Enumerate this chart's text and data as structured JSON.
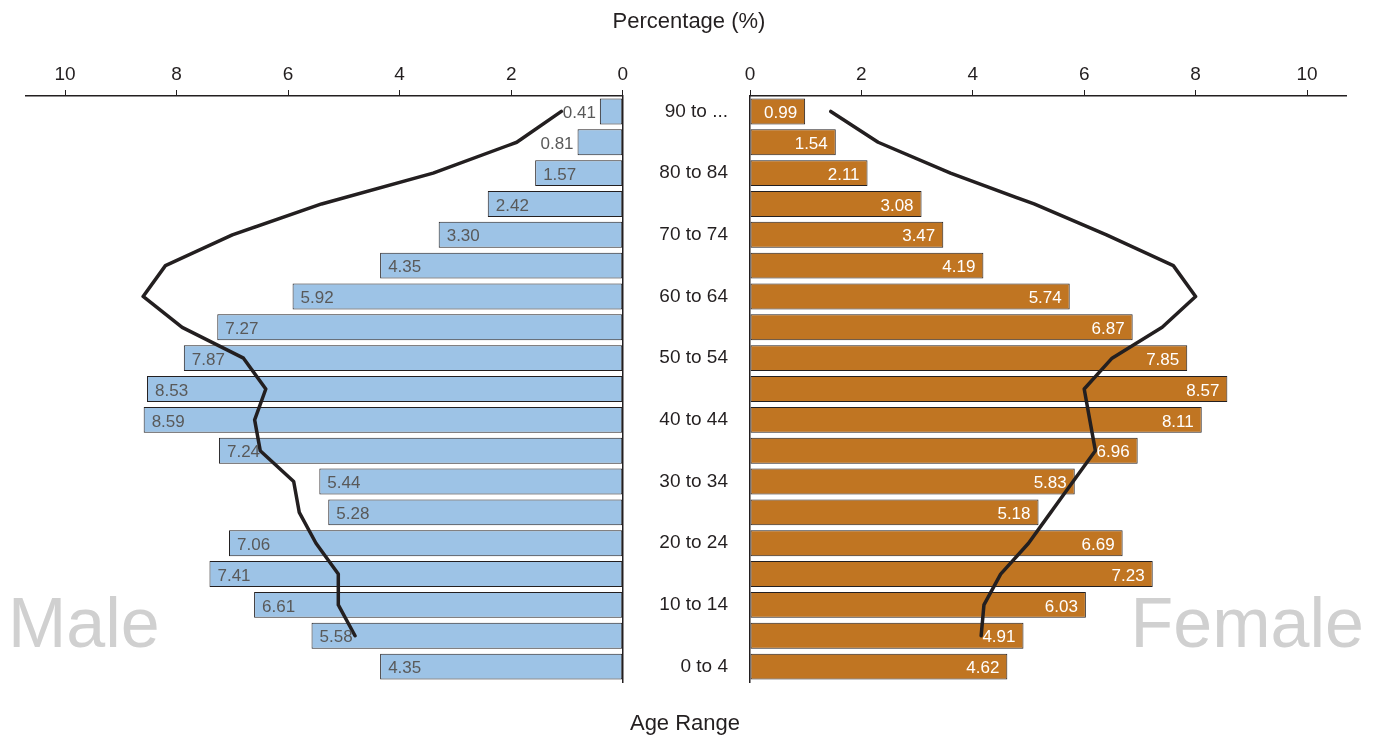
{
  "chart_data": [
    {
      "type": "bar",
      "orientation": "horizontal",
      "xlabel": "Percentage (%)",
      "categories": [
        null,
        null,
        null,
        null,
        null,
        null,
        null,
        null,
        null,
        null,
        null,
        null,
        null,
        null,
        null,
        null,
        null,
        null,
        null
      ],
      "xlim": [
        10.7,
        0
      ],
      "xticks": [
        10,
        8,
        6,
        4,
        2,
        0
      ],
      "tick_labels": "x",
      "grid": false,
      "legend": false,
      "marker": "none",
      "series": [
        {
          "name": "Male",
          "color": "#9dc3e6",
          "values": [
            0.41,
            0.81,
            1.57,
            2.42,
            3.3,
            4.35,
            5.92,
            7.27,
            7.87,
            8.53,
            8.59,
            7.24,
            5.44,
            5.28,
            7.06,
            7.41,
            6.61,
            5.58,
            4.35
          ],
          "value_labels": [
            "0.41",
            "0.81",
            "1.57",
            "2.42",
            "3.30",
            "4.35",
            "5.92",
            "7.27",
            "7.87",
            "8.53",
            "8.59",
            "7.24",
            "5.44",
            "5.28",
            "7.06",
            "7.41",
            "6.61",
            "5.58",
            "4.35"
          ]
        },
        {
          "type": "line",
          "color": "#231f20",
          "values": [
            1.1,
            1.9,
            3.4,
            5.4,
            7.0,
            8.2,
            8.6,
            7.9,
            6.8,
            6.4,
            6.6,
            6.5,
            5.9,
            5.8,
            5.5,
            5.1,
            5.1,
            4.8,
            null
          ]
        }
      ]
    },
    {
      "type": "bar",
      "orientation": "horizontal",
      "ylabel": "Age Range",
      "categories": [
        "90 to ...",
        null,
        "80 to 84",
        null,
        "70 to 74",
        null,
        "60 to 64",
        null,
        "50 to 54",
        null,
        "40 to 44",
        null,
        "30 to 34",
        null,
        "20 to 24",
        null,
        "10 to 14",
        null,
        "0 to 4"
      ],
      "xlim": [
        0,
        10.7
      ],
      "xticks": [
        0,
        2,
        4,
        6,
        8,
        10
      ],
      "grid": false,
      "legend": false,
      "marker": "none",
      "series": [
        {
          "name": "Female",
          "color": "#c07522",
          "values": [
            0.99,
            1.54,
            2.11,
            3.08,
            3.47,
            4.19,
            5.74,
            6.87,
            7.85,
            8.57,
            8.11,
            6.96,
            5.83,
            5.18,
            6.69,
            7.23,
            6.03,
            4.91,
            4.62
          ],
          "value_labels": [
            "0.99",
            "1.54",
            "2.11",
            "3.08",
            "3.47",
            "4.19",
            "5.74",
            "6.87",
            "7.85",
            "8.57",
            "8.11",
            "6.96",
            "5.83",
            "5.18",
            "6.69",
            "7.23",
            "6.03",
            "4.91",
            "4.62"
          ]
        },
        {
          "type": "line",
          "color": "#231f20",
          "values": [
            1.45,
            2.3,
            3.6,
            5.1,
            6.4,
            7.6,
            8.0,
            7.4,
            6.5,
            6.0,
            6.1,
            6.2,
            5.8,
            5.4,
            5.0,
            4.5,
            4.2,
            4.15,
            null
          ]
        }
      ]
    }
  ]
}
